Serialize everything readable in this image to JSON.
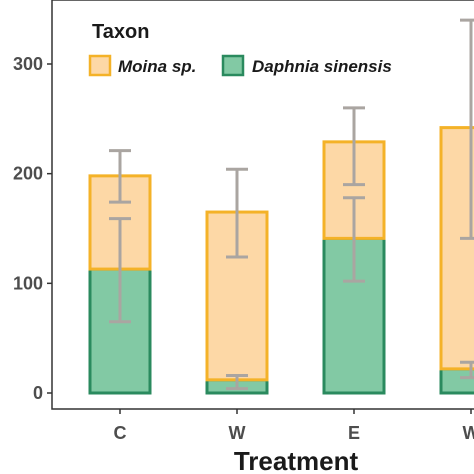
{
  "chart_data": {
    "type": "bar",
    "stacked": true,
    "categories": [
      "C",
      "W",
      "E",
      "W"
    ],
    "series": [
      {
        "name": "Daphnia sinensis",
        "values": [
          113,
          12,
          141,
          22
        ],
        "error_low": [
          65,
          4,
          102,
          14
        ],
        "error_high": [
          159,
          16,
          178,
          28
        ],
        "fill": "#82c9a4",
        "stroke": "#2a8a5e"
      },
      {
        "name": "Moina sp.",
        "values": [
          85,
          153,
          88,
          220
        ],
        "error_low": [
          174,
          124,
          190,
          141
        ],
        "error_high": [
          221,
          204,
          260,
          340
        ],
        "fill": "#fdd8a6",
        "stroke": "#f4b228"
      }
    ],
    "totals": [
      198,
      165,
      229,
      242
    ],
    "xlabel": "Treatment",
    "ylabel": "",
    "ylim": [
      -12,
      350
    ],
    "yticks": [
      0,
      100,
      200,
      300
    ],
    "ytick_labels": [
      "0",
      "100",
      "200",
      "300"
    ],
    "legend": {
      "title": "Taxon",
      "placement": "top-left-inside",
      "entries": [
        "Moina sp.",
        "Daphnia sinensis"
      ]
    },
    "error_bar_color": "#aaa5a1",
    "grid": false
  }
}
